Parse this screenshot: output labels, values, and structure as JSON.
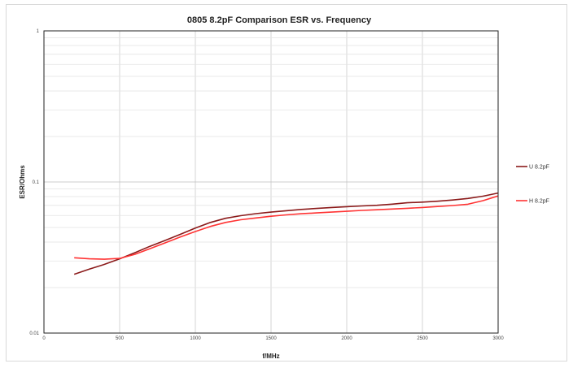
{
  "chart_data": {
    "type": "line",
    "title": "0805 8.2pF Comparison ESR vs. Frequency",
    "xlabel": "f/MHz",
    "ylabel": "ESR/Ohms",
    "xlim": [
      0,
      3000
    ],
    "ylim": [
      0.01,
      1
    ],
    "yscale": "log",
    "x_ticks": [
      "0",
      "500",
      "1000",
      "1500",
      "2000",
      "2500",
      "3000"
    ],
    "y_ticks": [
      "0.01",
      "0.1",
      "1"
    ],
    "grid": true,
    "legend": "right",
    "series": [
      {
        "name": "U 8.2pF",
        "color": "#8b1a1a",
        "x": [
          200,
          300,
          400,
          500,
          600,
          700,
          800,
          900,
          1000,
          1100,
          1200,
          1300,
          1400,
          1500,
          1600,
          1700,
          1800,
          1900,
          2000,
          2100,
          2200,
          2300,
          2400,
          2500,
          2600,
          2700,
          2800,
          2900,
          3000
        ],
        "y": [
          0.0245,
          0.0265,
          0.0285,
          0.031,
          0.034,
          0.0375,
          0.041,
          0.045,
          0.0495,
          0.054,
          0.0575,
          0.0598,
          0.0617,
          0.0632,
          0.0645,
          0.0658,
          0.0668,
          0.0678,
          0.0686,
          0.0694,
          0.0701,
          0.0713,
          0.0728,
          0.0736,
          0.0746,
          0.076,
          0.0778,
          0.0805,
          0.0845
        ]
      },
      {
        "name": "H 8.2pF",
        "color": "#ff3333",
        "x": [
          200,
          300,
          400,
          500,
          600,
          700,
          800,
          900,
          1000,
          1100,
          1200,
          1300,
          1400,
          1500,
          1600,
          1700,
          1800,
          1900,
          2000,
          2100,
          2200,
          2300,
          2400,
          2500,
          2600,
          2700,
          2800,
          2900,
          3000
        ],
        "y": [
          0.0315,
          0.031,
          0.0308,
          0.0312,
          0.0332,
          0.0362,
          0.0395,
          0.0432,
          0.047,
          0.0508,
          0.054,
          0.0562,
          0.0578,
          0.0593,
          0.0606,
          0.0616,
          0.0624,
          0.0632,
          0.064,
          0.0648,
          0.0655,
          0.0662,
          0.067,
          0.0678,
          0.0688,
          0.0698,
          0.0712,
          0.0752,
          0.0808
        ]
      }
    ]
  }
}
